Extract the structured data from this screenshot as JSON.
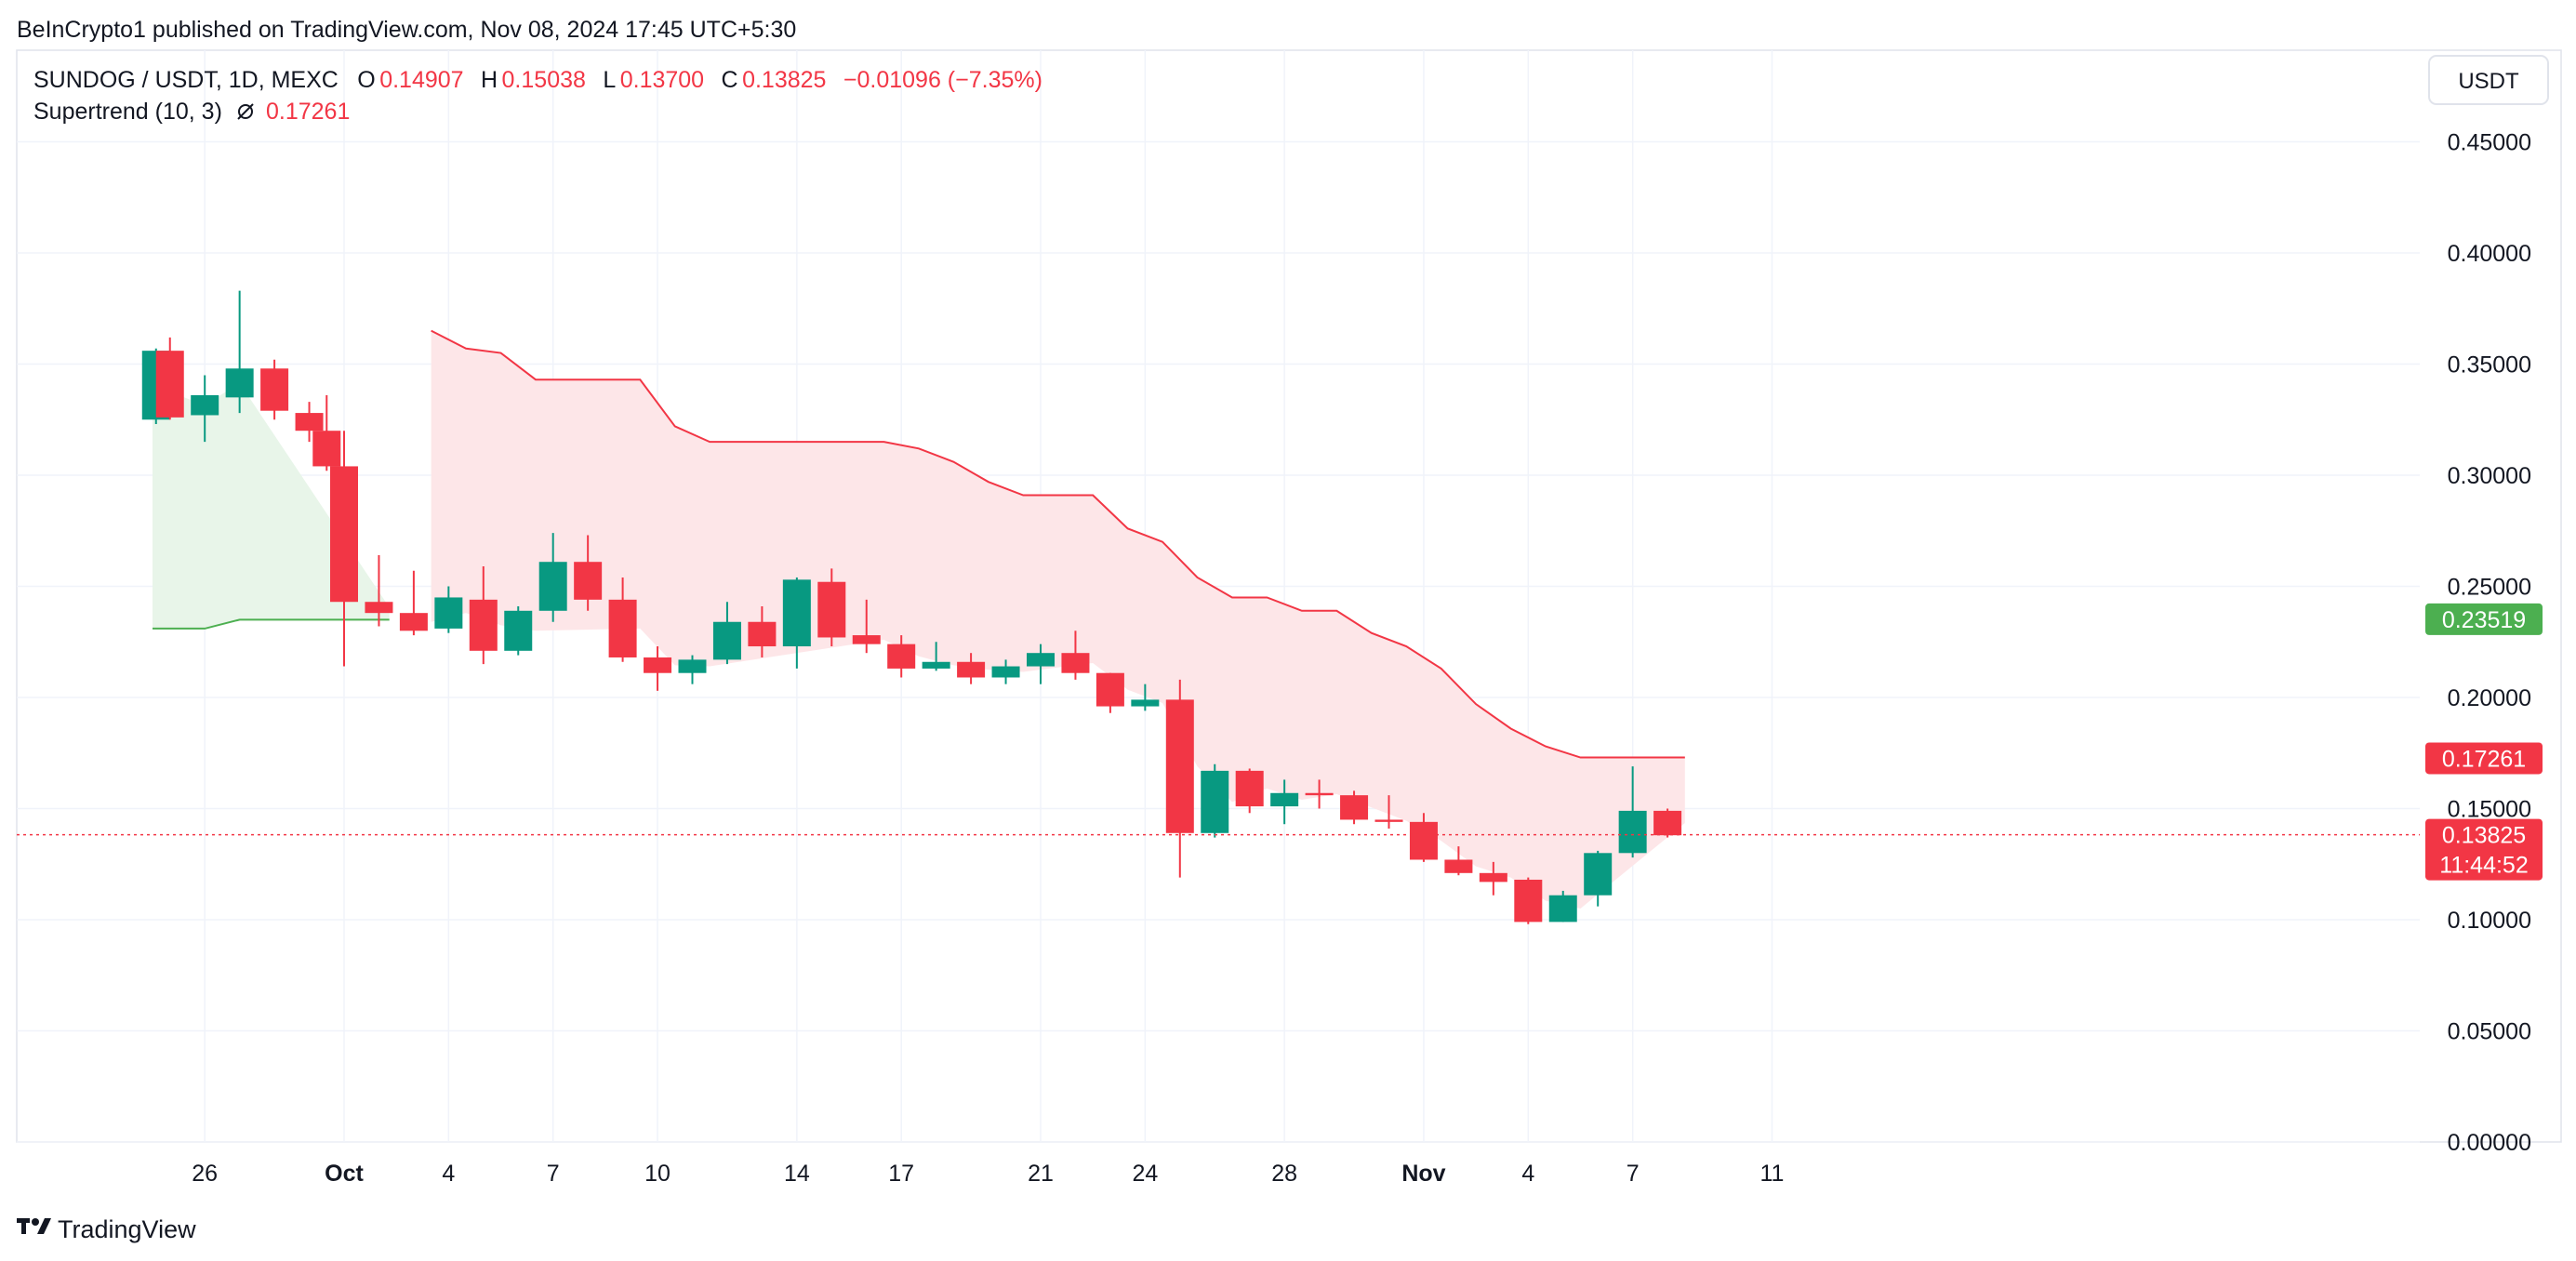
{
  "header": {
    "published": "BeInCrypto1 published on TradingView.com, Nov 08, 2024 17:45 UTC+5:30"
  },
  "legend": {
    "symbol": "SUNDOG / USDT, 1D, MEXC",
    "o_label": "O",
    "o_value": "0.14907",
    "h_label": "H",
    "h_value": "0.15038",
    "l_label": "L",
    "l_value": "0.13700",
    "c_label": "C",
    "c_value": "0.13825",
    "change": "−0.01096 (−7.35%)",
    "indicator": "Supertrend (10, 3)",
    "indicator_icon": "eye-slash-icon",
    "indicator_value": "0.17261"
  },
  "currency_button": "USDT",
  "price_tags": {
    "green": "0.23519",
    "red_st": "0.17261",
    "last_price": "0.13825",
    "countdown": "11:44:52"
  },
  "footer": {
    "brand": "TradingView"
  },
  "colors": {
    "up": "#089981",
    "down": "#f23645",
    "st_up": "#4caf50",
    "st_up_fill": "#e8f5e9",
    "st_down": "#f23645",
    "st_down_fill": "#fde6e8",
    "grid": "#f0f3fa"
  },
  "chart_data": {
    "type": "candlestick",
    "title": "SUNDOG / USDT, 1D, MEXC",
    "ylim": [
      0,
      0.47
    ],
    "y_ticks": [
      "0.45000",
      "0.40000",
      "0.35000",
      "0.30000",
      "0.25000",
      "0.20000",
      "0.15000",
      "0.10000",
      "0.05000",
      "0.00000"
    ],
    "x_ticks": [
      {
        "label": "26",
        "day": -4,
        "bold": false
      },
      {
        "label": "Oct",
        "day": 0,
        "bold": true
      },
      {
        "label": "4",
        "day": 3,
        "bold": false
      },
      {
        "label": "7",
        "day": 6,
        "bold": false
      },
      {
        "label": "10",
        "day": 9,
        "bold": false
      },
      {
        "label": "14",
        "day": 13,
        "bold": false
      },
      {
        "label": "17",
        "day": 16,
        "bold": false
      },
      {
        "label": "21",
        "day": 20,
        "bold": false
      },
      {
        "label": "24",
        "day": 23,
        "bold": false
      },
      {
        "label": "28",
        "day": 27,
        "bold": false
      },
      {
        "label": "Nov",
        "day": 31,
        "bold": true
      },
      {
        "label": "4",
        "day": 34,
        "bold": false
      },
      {
        "label": "7",
        "day": 37,
        "bold": false
      },
      {
        "label": "11",
        "day": 41,
        "bold": false
      }
    ],
    "candles": [
      {
        "day": -5.4,
        "o": 0.325,
        "h": 0.357,
        "l": 0.323,
        "c": 0.356
      },
      {
        "day": -5,
        "o": 0.356,
        "h": 0.362,
        "l": 0.325,
        "c": 0.326
      },
      {
        "day": -4,
        "o": 0.327,
        "h": 0.345,
        "l": 0.315,
        "c": 0.336
      },
      {
        "day": -3,
        "o": 0.335,
        "h": 0.383,
        "l": 0.328,
        "c": 0.348
      },
      {
        "day": -2,
        "o": 0.348,
        "h": 0.352,
        "l": 0.325,
        "c": 0.329
      },
      {
        "day": -1,
        "o": 0.328,
        "h": 0.333,
        "l": 0.315,
        "c": 0.32
      },
      {
        "day": -0.5,
        "o": 0.32,
        "h": 0.336,
        "l": 0.302,
        "c": 0.304
      },
      {
        "day": 0,
        "o": 0.304,
        "h": 0.32,
        "l": 0.214,
        "c": 0.243
      },
      {
        "day": 1,
        "o": 0.243,
        "h": 0.264,
        "l": 0.232,
        "c": 0.238
      },
      {
        "day": 2,
        "o": 0.238,
        "h": 0.257,
        "l": 0.228,
        "c": 0.23
      },
      {
        "day": 3,
        "o": 0.231,
        "h": 0.25,
        "l": 0.229,
        "c": 0.245
      },
      {
        "day": 4,
        "o": 0.244,
        "h": 0.259,
        "l": 0.215,
        "c": 0.221
      },
      {
        "day": 5,
        "o": 0.221,
        "h": 0.241,
        "l": 0.219,
        "c": 0.239
      },
      {
        "day": 6,
        "o": 0.239,
        "h": 0.274,
        "l": 0.234,
        "c": 0.261
      },
      {
        "day": 7,
        "o": 0.261,
        "h": 0.273,
        "l": 0.239,
        "c": 0.244
      },
      {
        "day": 8,
        "o": 0.244,
        "h": 0.254,
        "l": 0.216,
        "c": 0.218
      },
      {
        "day": 9,
        "o": 0.218,
        "h": 0.223,
        "l": 0.203,
        "c": 0.211
      },
      {
        "day": 10,
        "o": 0.211,
        "h": 0.219,
        "l": 0.206,
        "c": 0.217
      },
      {
        "day": 11,
        "o": 0.217,
        "h": 0.243,
        "l": 0.215,
        "c": 0.234
      },
      {
        "day": 12,
        "o": 0.234,
        "h": 0.241,
        "l": 0.218,
        "c": 0.223
      },
      {
        "day": 13,
        "o": 0.223,
        "h": 0.254,
        "l": 0.213,
        "c": 0.253
      },
      {
        "day": 14,
        "o": 0.252,
        "h": 0.258,
        "l": 0.223,
        "c": 0.227
      },
      {
        "day": 15,
        "o": 0.228,
        "h": 0.244,
        "l": 0.22,
        "c": 0.224
      },
      {
        "day": 16,
        "o": 0.224,
        "h": 0.228,
        "l": 0.209,
        "c": 0.213
      },
      {
        "day": 17,
        "o": 0.213,
        "h": 0.225,
        "l": 0.212,
        "c": 0.216
      },
      {
        "day": 18,
        "o": 0.216,
        "h": 0.22,
        "l": 0.206,
        "c": 0.209
      },
      {
        "day": 19,
        "o": 0.209,
        "h": 0.217,
        "l": 0.206,
        "c": 0.214
      },
      {
        "day": 20,
        "o": 0.214,
        "h": 0.224,
        "l": 0.206,
        "c": 0.22
      },
      {
        "day": 21,
        "o": 0.22,
        "h": 0.23,
        "l": 0.208,
        "c": 0.211
      },
      {
        "day": 22,
        "o": 0.211,
        "h": 0.211,
        "l": 0.193,
        "c": 0.196
      },
      {
        "day": 23,
        "o": 0.196,
        "h": 0.206,
        "l": 0.194,
        "c": 0.199
      },
      {
        "day": 24,
        "o": 0.199,
        "h": 0.208,
        "l": 0.119,
        "c": 0.139
      },
      {
        "day": 25,
        "o": 0.139,
        "h": 0.17,
        "l": 0.137,
        "c": 0.167
      },
      {
        "day": 26,
        "o": 0.167,
        "h": 0.168,
        "l": 0.148,
        "c": 0.151
      },
      {
        "day": 27,
        "o": 0.151,
        "h": 0.163,
        "l": 0.143,
        "c": 0.157
      },
      {
        "day": 28,
        "o": 0.157,
        "h": 0.163,
        "l": 0.15,
        "c": 0.156
      },
      {
        "day": 29,
        "o": 0.156,
        "h": 0.158,
        "l": 0.143,
        "c": 0.145
      },
      {
        "day": 30,
        "o": 0.145,
        "h": 0.156,
        "l": 0.141,
        "c": 0.144
      },
      {
        "day": 31,
        "o": 0.144,
        "h": 0.148,
        "l": 0.126,
        "c": 0.127
      },
      {
        "day": 32,
        "o": 0.127,
        "h": 0.133,
        "l": 0.12,
        "c": 0.121
      },
      {
        "day": 33,
        "o": 0.121,
        "h": 0.126,
        "l": 0.111,
        "c": 0.117
      },
      {
        "day": 34,
        "o": 0.118,
        "h": 0.119,
        "l": 0.098,
        "c": 0.099
      },
      {
        "day": 35,
        "o": 0.099,
        "h": 0.113,
        "l": 0.099,
        "c": 0.111
      },
      {
        "day": 36,
        "o": 0.111,
        "h": 0.131,
        "l": 0.106,
        "c": 0.13
      },
      {
        "day": 37,
        "o": 0.13,
        "h": 0.169,
        "l": 0.128,
        "c": 0.149
      },
      {
        "day": 38,
        "o": 0.149,
        "h": 0.15,
        "l": 0.137,
        "c": 0.138
      }
    ],
    "supertrend_up": [
      {
        "day": -5.5,
        "v": 0.231
      },
      {
        "day": -4,
        "v": 0.231
      },
      {
        "day": -3,
        "v": 0.235
      },
      {
        "day": 1.3,
        "v": 0.235
      }
    ],
    "supertrend_down": [
      {
        "day": 2.5,
        "v": 0.365
      },
      {
        "day": 3.5,
        "v": 0.357
      },
      {
        "day": 4.5,
        "v": 0.355
      },
      {
        "day": 5.5,
        "v": 0.343
      },
      {
        "day": 8.5,
        "v": 0.343
      },
      {
        "day": 9.5,
        "v": 0.322
      },
      {
        "day": 10.5,
        "v": 0.315
      },
      {
        "day": 15.5,
        "v": 0.315
      },
      {
        "day": 16.5,
        "v": 0.312
      },
      {
        "day": 17.5,
        "v": 0.306
      },
      {
        "day": 18.5,
        "v": 0.297
      },
      {
        "day": 19.5,
        "v": 0.291
      },
      {
        "day": 21.5,
        "v": 0.291
      },
      {
        "day": 22.5,
        "v": 0.276
      },
      {
        "day": 23.5,
        "v": 0.27
      },
      {
        "day": 24.5,
        "v": 0.254
      },
      {
        "day": 25.5,
        "v": 0.245
      },
      {
        "day": 26.5,
        "v": 0.245
      },
      {
        "day": 27.5,
        "v": 0.239
      },
      {
        "day": 28.5,
        "v": 0.239
      },
      {
        "day": 29.5,
        "v": 0.229
      },
      {
        "day": 30.5,
        "v": 0.223
      },
      {
        "day": 31.5,
        "v": 0.213
      },
      {
        "day": 32.5,
        "v": 0.197
      },
      {
        "day": 33.5,
        "v": 0.186
      },
      {
        "day": 34.5,
        "v": 0.178
      },
      {
        "day": 35.5,
        "v": 0.173
      },
      {
        "day": 38.5,
        "v": 0.173
      }
    ],
    "last_price": 0.13825,
    "supertrend_value": 0.17261,
    "green_tag_value": 0.23519
  }
}
